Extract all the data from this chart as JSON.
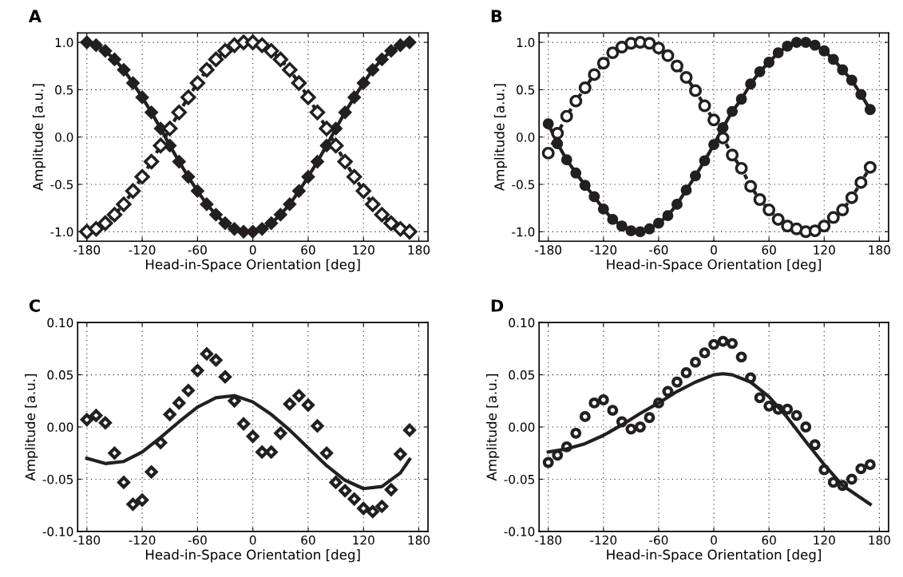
{
  "chart_data": [
    {
      "type": "line",
      "title": "A",
      "xlabel": "Head-in-Space Orientation [deg]",
      "ylabel": "Amplitude [a.u.]",
      "x": [
        -180,
        -170,
        -160,
        -150,
        -140,
        -130,
        -120,
        -110,
        -100,
        -90,
        -80,
        -70,
        -60,
        -50,
        -40,
        -30,
        -20,
        -10,
        0,
        10,
        20,
        30,
        40,
        50,
        60,
        70,
        80,
        90,
        100,
        110,
        120,
        130,
        140,
        150,
        160,
        170
      ],
      "series": [
        {
          "color": "#231f20",
          "marker": "diamond",
          "line_style": "solid",
          "values": [
            1.0,
            0.97,
            0.91,
            0.82,
            0.71,
            0.57,
            0.42,
            0.26,
            0.09,
            -0.09,
            -0.26,
            -0.42,
            -0.57,
            -0.71,
            -0.82,
            -0.91,
            -0.97,
            -1.0,
            -1.0,
            -0.97,
            -0.91,
            -0.82,
            -0.71,
            -0.57,
            -0.42,
            -0.26,
            -0.09,
            0.09,
            0.26,
            0.42,
            0.57,
            0.71,
            0.82,
            0.91,
            0.97,
            1.0
          ]
        },
        {
          "color": "#231f20",
          "marker": "diamond",
          "line_style": "dashed",
          "values": [
            -1.0,
            -0.97,
            -0.91,
            -0.82,
            -0.71,
            -0.57,
            -0.42,
            -0.26,
            -0.09,
            0.09,
            0.26,
            0.42,
            0.57,
            0.71,
            0.82,
            0.91,
            0.97,
            1.0,
            1.0,
            0.97,
            0.91,
            0.82,
            0.71,
            0.57,
            0.42,
            0.26,
            0.09,
            -0.09,
            -0.26,
            -0.42,
            -0.57,
            -0.71,
            -0.82,
            -0.91,
            -0.97,
            -1.0
          ]
        }
      ],
      "xlim": [
        -190,
        190
      ],
      "xticks": [
        -180,
        -120,
        -60,
        0,
        60,
        120,
        180
      ],
      "ylim": [
        -1.1,
        1.1
      ],
      "yticks": [
        {
          "value": -1.0,
          "label": "-1.0"
        },
        {
          "value": -0.5,
          "label": "-0.5"
        },
        {
          "value": 0.0,
          "label": "0.0"
        },
        {
          "value": 0.5,
          "label": "0.5"
        },
        {
          "value": 1.0,
          "label": "1.0"
        }
      ],
      "grid": true
    },
    {
      "type": "line",
      "title": "B",
      "xlabel": "Head-in-Space Orientation [deg]",
      "ylabel": "Amplitude [a.u.]",
      "x": [
        -180,
        -170,
        -160,
        -150,
        -140,
        -130,
        -120,
        -110,
        -100,
        -90,
        -80,
        -70,
        -60,
        -50,
        -40,
        -30,
        -20,
        -10,
        0,
        10,
        20,
        30,
        40,
        50,
        60,
        70,
        80,
        90,
        100,
        110,
        120,
        130,
        140,
        150,
        160,
        170
      ],
      "series": [
        {
          "color": "#231f20",
          "marker": "circle",
          "line_style": "solid",
          "values": [
            0.14,
            -0.07,
            -0.24,
            -0.38,
            -0.51,
            -0.63,
            -0.76,
            -0.87,
            -0.94,
            -0.99,
            -1.0,
            -0.97,
            -0.91,
            -0.83,
            -0.71,
            -0.56,
            -0.41,
            -0.25,
            -0.08,
            0.1,
            0.27,
            0.4,
            0.56,
            0.69,
            0.79,
            0.89,
            0.96,
            1.0,
            1.0,
            0.97,
            0.91,
            0.82,
            0.71,
            0.6,
            0.45,
            0.29
          ]
        },
        {
          "color": "#231f20",
          "marker": "circle",
          "line_style": "dashed",
          "values": [
            -0.17,
            0.04,
            0.22,
            0.38,
            0.52,
            0.66,
            0.78,
            0.89,
            0.95,
            0.99,
            1.0,
            0.99,
            0.94,
            0.86,
            0.75,
            0.63,
            0.49,
            0.33,
            0.18,
            -0.01,
            -0.19,
            -0.33,
            -0.52,
            -0.66,
            -0.77,
            -0.87,
            -0.94,
            -0.97,
            -1.0,
            -0.99,
            -0.94,
            -0.85,
            -0.77,
            -0.64,
            -0.48,
            -0.32
          ]
        }
      ],
      "xlim": [
        -190,
        190
      ],
      "xticks": [
        -180,
        -120,
        -60,
        0,
        60,
        120,
        180
      ],
      "ylim": [
        -1.1,
        1.1
      ],
      "yticks": [
        {
          "value": -1.0,
          "label": "-1.0"
        },
        {
          "value": -0.5,
          "label": "-0.5"
        },
        {
          "value": 0.0,
          "label": "0.0"
        },
        {
          "value": 0.5,
          "label": "0.5"
        },
        {
          "value": 1.0,
          "label": "1.0"
        }
      ],
      "grid": true
    },
    {
      "type": "scatter",
      "title": "C",
      "xlabel": "Head-in-Space Orientation [deg]",
      "ylabel": "Amplitude [a.u.]",
      "x": [
        -180,
        -170,
        -160,
        -150,
        -140,
        -130,
        -120,
        -110,
        -100,
        -90,
        -80,
        -70,
        -60,
        -50,
        -40,
        -30,
        -20,
        -10,
        0,
        10,
        20,
        30,
        40,
        50,
        60,
        70,
        80,
        90,
        100,
        110,
        120,
        130,
        140,
        150,
        160,
        170
      ],
      "series": [
        {
          "color": "#231f20",
          "marker": "diamond",
          "values": [
            0.007,
            0.011,
            0.004,
            -0.025,
            -0.053,
            -0.074,
            -0.07,
            -0.043,
            -0.015,
            0.012,
            0.023,
            0.035,
            0.054,
            0.07,
            0.064,
            0.048,
            0.025,
            0.003,
            -0.009,
            -0.024,
            -0.024,
            -0.006,
            0.022,
            0.03,
            0.021,
            0.001,
            -0.025,
            -0.053,
            -0.061,
            -0.069,
            -0.078,
            -0.081,
            -0.076,
            -0.06,
            -0.026,
            -0.003
          ]
        },
        {
          "type": "line",
          "color": "#231f20",
          "marker": "none",
          "x": [
            -180,
            -160,
            -140,
            -120,
            -100,
            -80,
            -60,
            -40,
            -20,
            0,
            20,
            40,
            60,
            80,
            100,
            120,
            140,
            160,
            170
          ],
          "values": [
            -0.03,
            -0.035,
            -0.033,
            -0.024,
            -0.01,
            0.005,
            0.019,
            0.028,
            0.03,
            0.024,
            0.012,
            -0.003,
            -0.02,
            -0.037,
            -0.051,
            -0.059,
            -0.057,
            -0.044,
            -0.031
          ]
        }
      ],
      "xlim": [
        -190,
        190
      ],
      "xticks": [
        -180,
        -120,
        -60,
        0,
        60,
        120,
        180
      ],
      "ylim": [
        -0.1,
        0.1
      ],
      "yticks": [
        {
          "value": -0.1,
          "label": "-0.10"
        },
        {
          "value": -0.05,
          "label": "-0.05"
        },
        {
          "value": 0.0,
          "label": "0.00"
        },
        {
          "value": 0.05,
          "label": "0.05"
        },
        {
          "value": 0.1,
          "label": "0.10"
        }
      ],
      "grid": true
    },
    {
      "type": "scatter",
      "title": "D",
      "xlabel": "Head-in-Space Orientation [deg]",
      "ylabel": "Amplitude [a.u.]",
      "x": [
        -180,
        -170,
        -160,
        -150,
        -140,
        -130,
        -120,
        -110,
        -100,
        -90,
        -80,
        -70,
        -60,
        -50,
        -40,
        -30,
        -20,
        -10,
        0,
        10,
        20,
        30,
        40,
        50,
        60,
        70,
        80,
        90,
        100,
        110,
        120,
        130,
        140,
        150,
        160,
        170
      ],
      "series": [
        {
          "color": "#231f20",
          "marker": "circle",
          "values": [
            -0.034,
            -0.027,
            -0.019,
            -0.006,
            0.01,
            0.023,
            0.026,
            0.016,
            0.005,
            -0.002,
            0.0,
            0.009,
            0.023,
            0.034,
            0.043,
            0.052,
            0.062,
            0.071,
            0.079,
            0.082,
            0.08,
            0.067,
            0.047,
            0.028,
            0.02,
            0.017,
            0.017,
            0.011,
            0.0,
            -0.017,
            -0.041,
            -0.053,
            -0.056,
            -0.05,
            -0.04,
            -0.036
          ]
        },
        {
          "type": "line",
          "color": "#231f20",
          "marker": "none",
          "x": [
            -180,
            -160,
            -140,
            -120,
            -100,
            -80,
            -60,
            -40,
            -20,
            0,
            10,
            20,
            40,
            60,
            80,
            100,
            120,
            140,
            160,
            170
          ],
          "values": [
            -0.024,
            -0.021,
            -0.016,
            -0.008,
            0.002,
            0.013,
            0.023,
            0.034,
            0.043,
            0.05,
            0.051,
            0.05,
            0.043,
            0.029,
            0.009,
            -0.014,
            -0.036,
            -0.056,
            -0.068,
            -0.074
          ]
        }
      ],
      "xlim": [
        -190,
        190
      ],
      "xticks": [
        -180,
        -120,
        -60,
        0,
        60,
        120,
        180
      ],
      "ylim": [
        -0.1,
        0.1
      ],
      "yticks": [
        {
          "value": -0.1,
          "label": "-0.10"
        },
        {
          "value": -0.05,
          "label": "-0.05"
        },
        {
          "value": 0.0,
          "label": "0.00"
        },
        {
          "value": 0.05,
          "label": "0.05"
        },
        {
          "value": 0.1,
          "label": "0.10"
        }
      ],
      "grid": true
    }
  ]
}
